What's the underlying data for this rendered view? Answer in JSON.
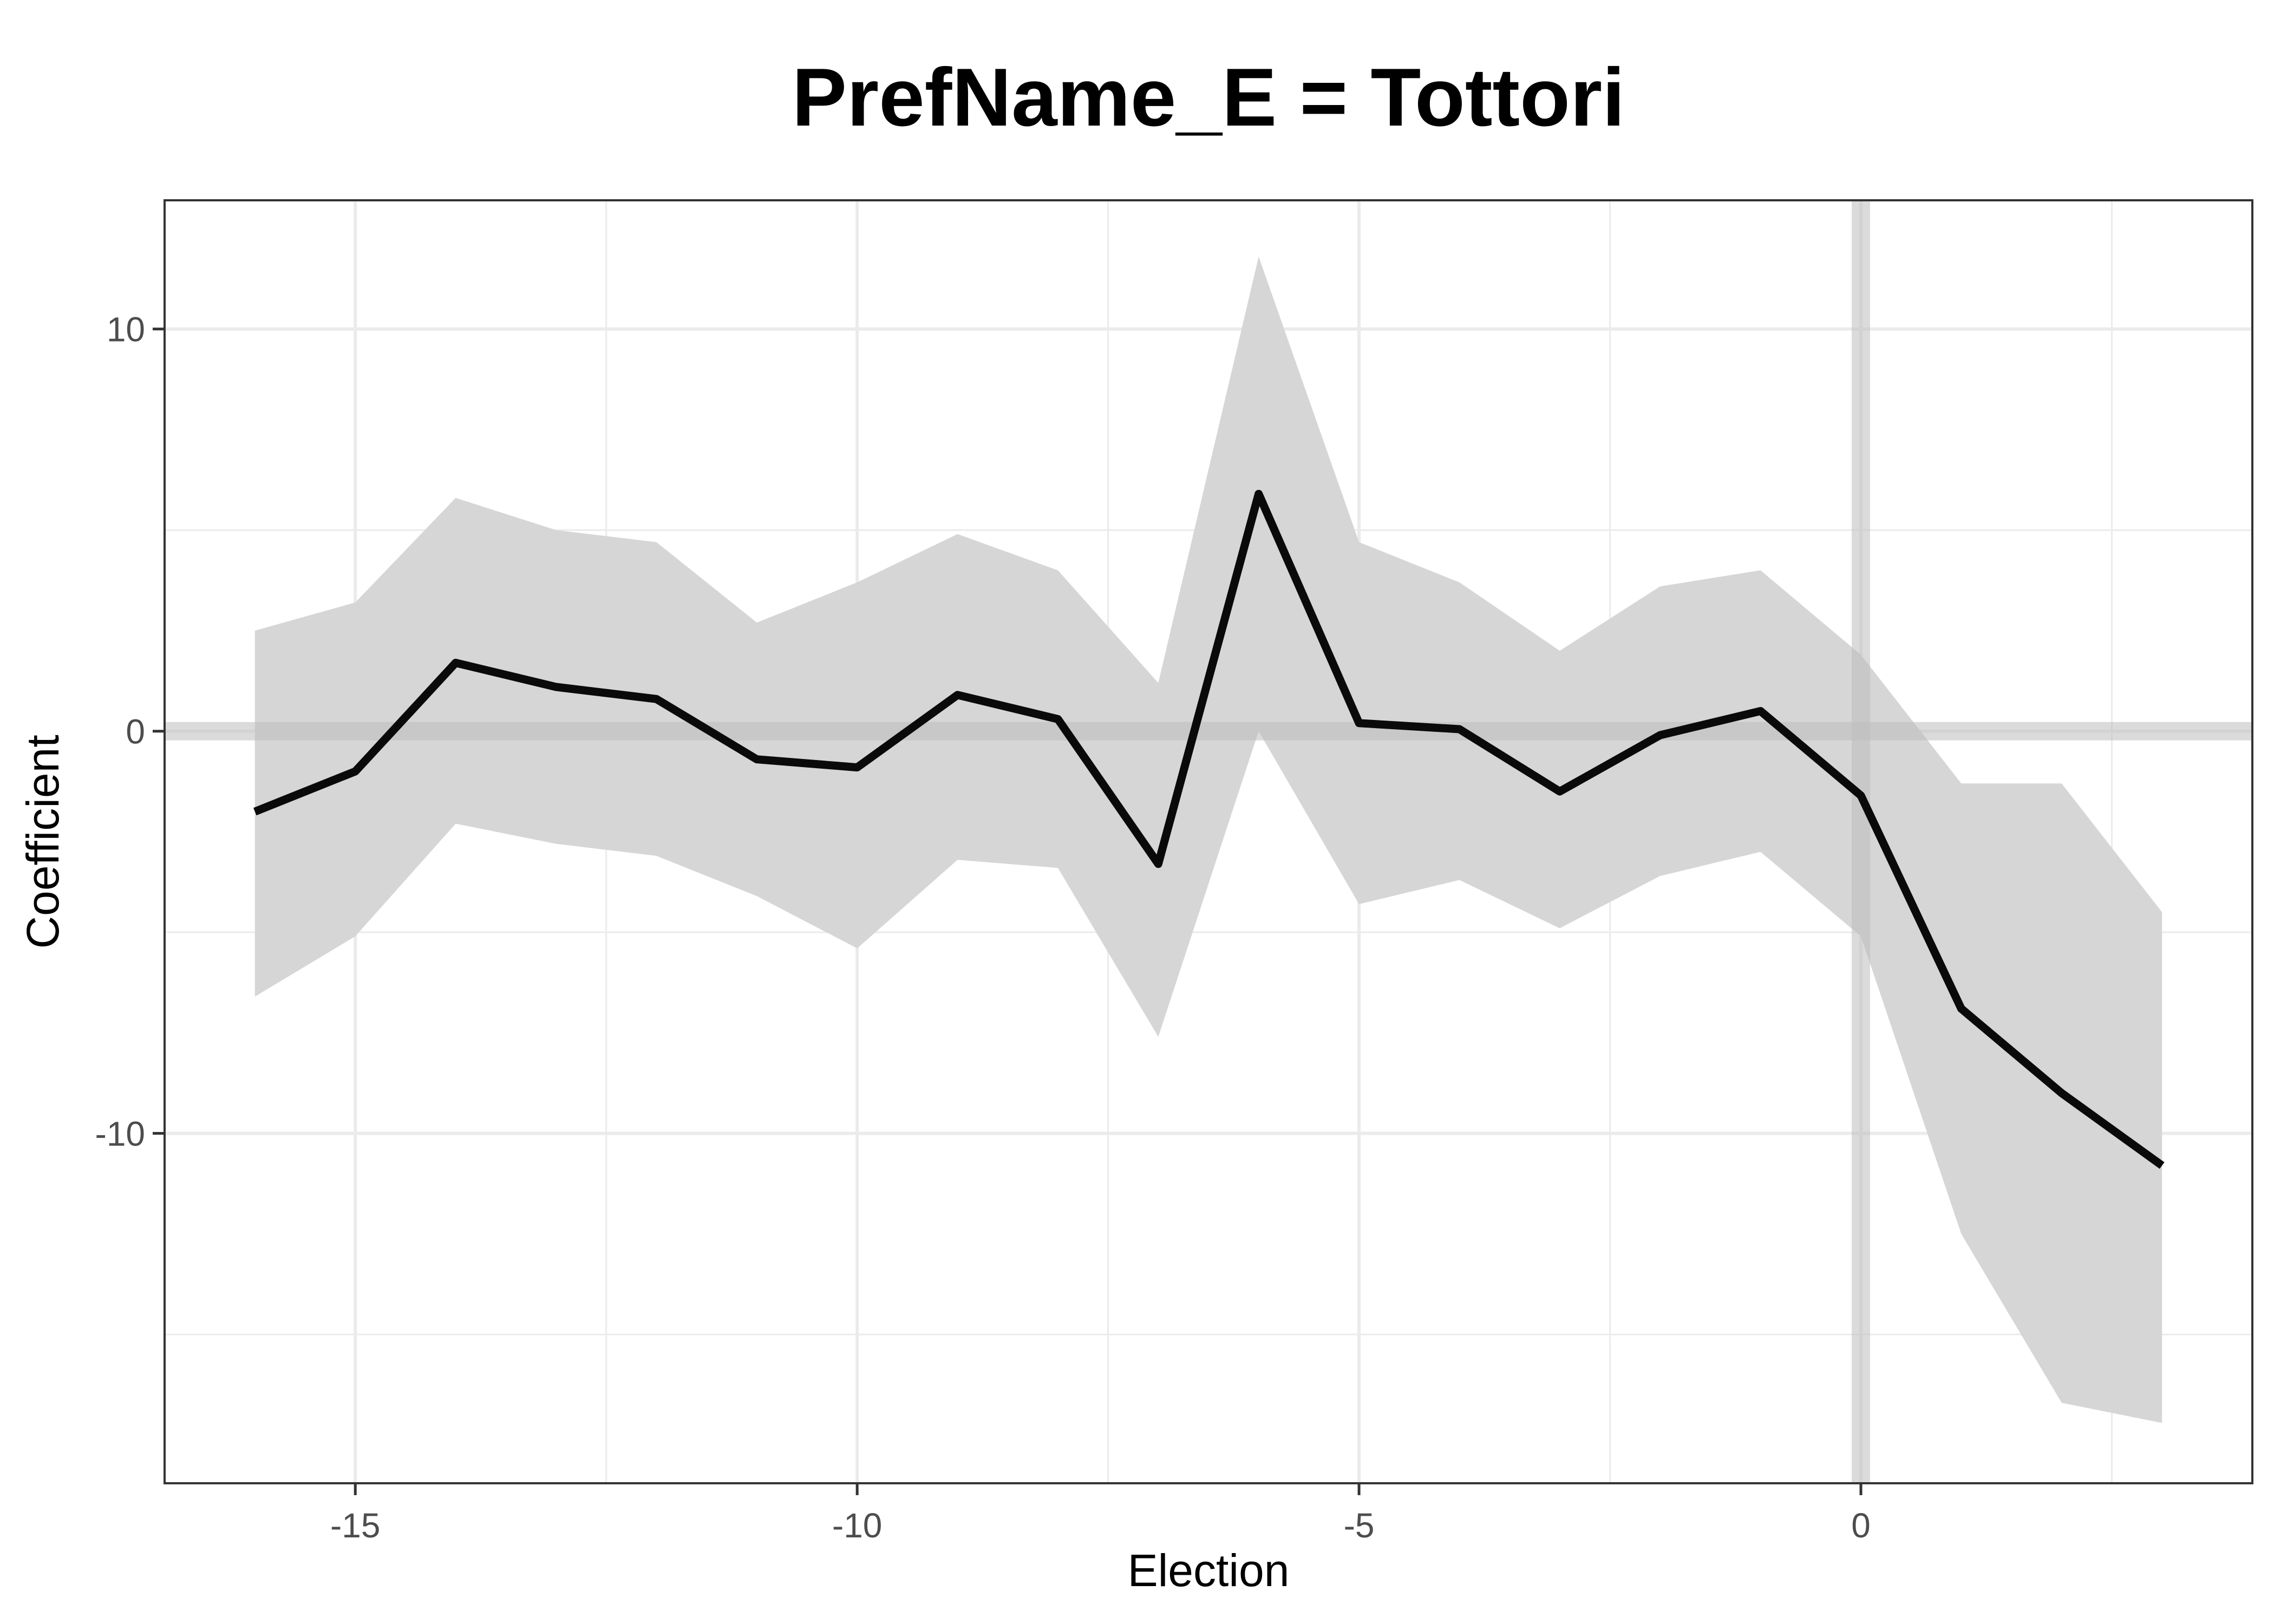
{
  "chart_data": {
    "type": "line",
    "title": "PrefName_E = Tottori",
    "xlabel": "Election",
    "ylabel": "Coefficient",
    "xlim": [
      -16.9,
      3.9
    ],
    "ylim": [
      -18.7,
      13.2
    ],
    "x_ticks": [
      -15,
      -10,
      -5,
      0
    ],
    "x_tick_labels": [
      "-15",
      "-10",
      "-5",
      "0"
    ],
    "y_ticks": [
      10,
      0,
      -10
    ],
    "y_tick_labels": [
      "10",
      "0",
      "-10"
    ],
    "grid": true,
    "reference_lines": {
      "x": 0,
      "y": 0
    },
    "colors": {
      "line": "#0a0a0a",
      "ribbon": "#d6d6d6",
      "grid": "#ebebeb",
      "reference": "#bdbdbd"
    },
    "x": [
      -16,
      -15,
      -14,
      -13,
      -12,
      -11,
      -10,
      -9,
      -8,
      -7,
      -6,
      -5,
      -4,
      -3,
      -2,
      -1,
      0,
      1,
      2,
      3
    ],
    "series": [
      {
        "values": [
          -2.0,
          -1.0,
          1.7,
          1.1,
          0.8,
          -0.7,
          -0.9,
          0.9,
          0.3,
          -3.3,
          5.9,
          0.2,
          0.05,
          -1.5,
          -0.1,
          0.5,
          -1.6,
          -6.9,
          -9.0,
          -10.8
        ],
        "lower": [
          -6.6,
          -5.1,
          -2.3,
          -2.8,
          -3.1,
          -4.1,
          -5.4,
          -3.2,
          -3.4,
          -7.6,
          0.0,
          -4.3,
          -3.7,
          -4.9,
          -3.6,
          -3.0,
          -5.1,
          -12.5,
          -16.7,
          -17.2
        ],
        "upper": [
          2.5,
          3.2,
          5.8,
          5.0,
          4.7,
          2.7,
          3.7,
          4.9,
          4.0,
          1.2,
          11.8,
          4.7,
          3.7,
          2.0,
          3.6,
          4.0,
          1.9,
          -1.3,
          -1.3,
          -4.5
        ]
      }
    ]
  }
}
